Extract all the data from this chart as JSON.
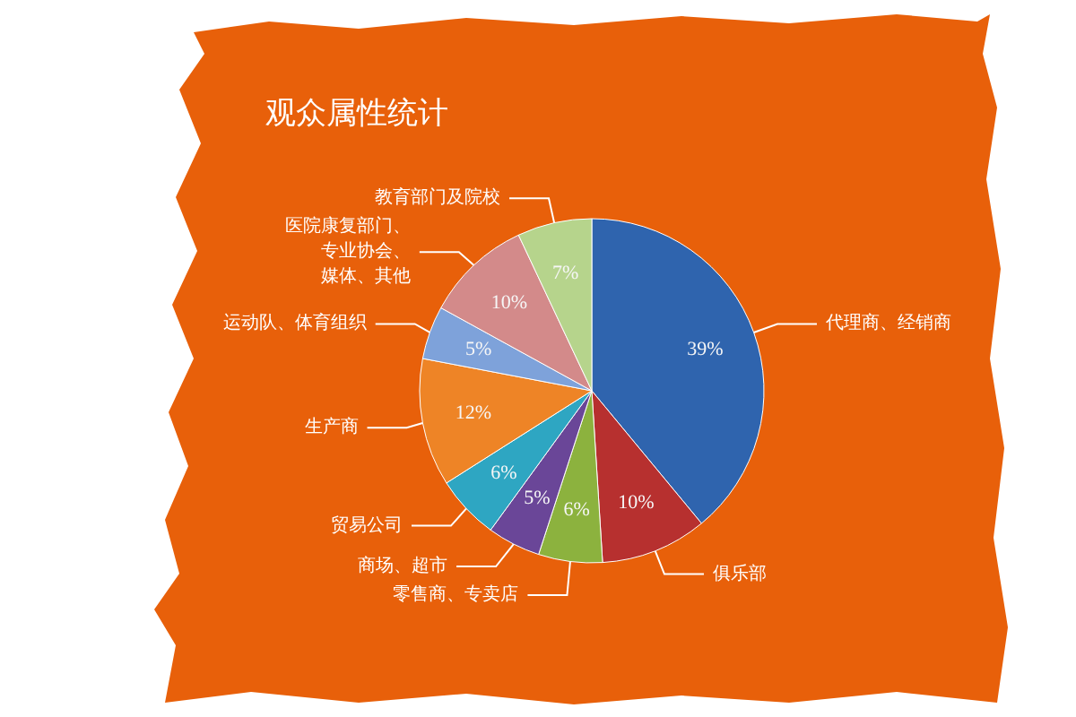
{
  "chart_data": {
    "type": "pie",
    "title": "观众属性统计",
    "categories": [
      "代理商、经销商",
      "俱乐部",
      "零售商、专卖店",
      "商场、超市",
      "贸易公司",
      "生产商",
      "运动队、体育组织",
      "医院康复部门、专业协会、媒体、其他",
      "教育部门及院校"
    ],
    "values": [
      39,
      10,
      6,
      5,
      6,
      12,
      5,
      10,
      7
    ],
    "value_labels": [
      "39%",
      "10%",
      "6%",
      "5%",
      "6%",
      "12%",
      "5%",
      "10%",
      "7%"
    ],
    "colors": [
      "#2f64ae",
      "#b7302f",
      "#8cb23e",
      "#6a4698",
      "#2ea6c2",
      "#ee8426",
      "#7ea2da",
      "#d38a8a",
      "#b6d48c"
    ],
    "legend": false
  }
}
